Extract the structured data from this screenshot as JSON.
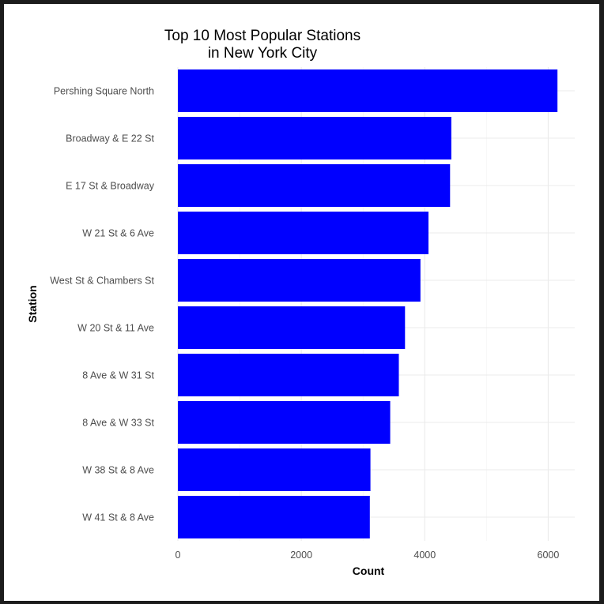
{
  "chart_data": {
    "type": "bar",
    "orientation": "horizontal",
    "title_lines": [
      "Top 10 Most Popular Stations",
      "in New York City"
    ],
    "xlabel": "Count",
    "ylabel": "Station",
    "categories": [
      "Pershing Square North",
      "Broadway & E 22 St",
      "E 17 St & Broadway",
      "W 21 St & 6 Ave",
      "West St & Chambers St",
      "W 20 St & 11 Ave",
      "8 Ave & W 31 St",
      "8 Ave & W 33 St",
      "W 38 St & 8 Ave",
      "W 41 St & 8 Ave"
    ],
    "values": [
      6150,
      4430,
      4410,
      4060,
      3930,
      3680,
      3580,
      3440,
      3120,
      3110
    ],
    "xticks": [
      0,
      2000,
      4000,
      6000
    ],
    "xlim": [
      0,
      6430
    ],
    "grid": true,
    "bar_color": "#0000ff"
  }
}
